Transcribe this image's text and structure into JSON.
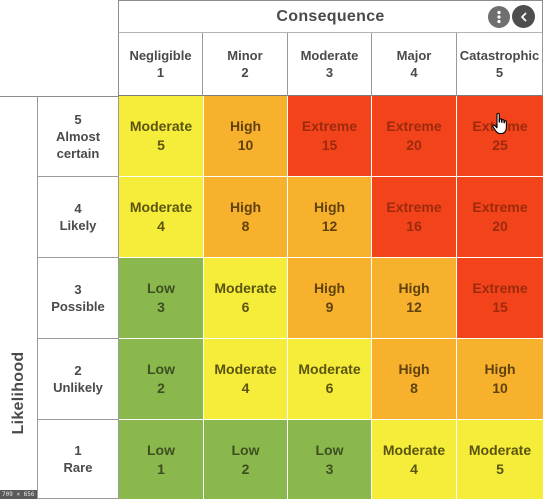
{
  "matrix": {
    "consequence_title": "Consequence",
    "likelihood_title": "Likelihood",
    "columns": [
      {
        "name": "Negligible",
        "value": "1"
      },
      {
        "name": "Minor",
        "value": "2"
      },
      {
        "name": "Moderate",
        "value": "3"
      },
      {
        "name": "Major",
        "value": "4"
      },
      {
        "name": "Catastrophic",
        "value": "5"
      }
    ],
    "rows": [
      {
        "value": "5",
        "name_line1": "Almost",
        "name_line2": "certain",
        "cells": [
          {
            "level": "Moderate",
            "score": "5"
          },
          {
            "level": "High",
            "score": "10"
          },
          {
            "level": "Extreme",
            "score": "15"
          },
          {
            "level": "Extreme",
            "score": "20"
          },
          {
            "level": "Extreme",
            "score": "25"
          }
        ]
      },
      {
        "value": "4",
        "name_line1": "Likely",
        "name_line2": "",
        "cells": [
          {
            "level": "Moderate",
            "score": "4"
          },
          {
            "level": "High",
            "score": "8"
          },
          {
            "level": "High",
            "score": "12"
          },
          {
            "level": "Extreme",
            "score": "16"
          },
          {
            "level": "Extreme",
            "score": "20"
          }
        ]
      },
      {
        "value": "3",
        "name_line1": "Possible",
        "name_line2": "",
        "cells": [
          {
            "level": "Low",
            "score": "3"
          },
          {
            "level": "Moderate",
            "score": "6"
          },
          {
            "level": "High",
            "score": "9"
          },
          {
            "level": "High",
            "score": "12"
          },
          {
            "level": "Extreme",
            "score": "15"
          }
        ]
      },
      {
        "value": "2",
        "name_line1": "Unlikely",
        "name_line2": "",
        "cells": [
          {
            "level": "Low",
            "score": "2"
          },
          {
            "level": "Moderate",
            "score": "4"
          },
          {
            "level": "Moderate",
            "score": "6"
          },
          {
            "level": "High",
            "score": "8"
          },
          {
            "level": "High",
            "score": "10"
          }
        ]
      },
      {
        "value": "1",
        "name_line1": "Rare",
        "name_line2": "",
        "cells": [
          {
            "level": "Low",
            "score": "1"
          },
          {
            "level": "Low",
            "score": "2"
          },
          {
            "level": "Low",
            "score": "3"
          },
          {
            "level": "Moderate",
            "score": "4"
          },
          {
            "level": "Moderate",
            "score": "5"
          }
        ]
      }
    ]
  },
  "level_colors": {
    "Low": "#8bb84c",
    "Moderate": "#f5ed3a",
    "High": "#f8b12c",
    "Extreme": "#f2431a"
  },
  "overlay": {
    "more_icon": "more-vertical-icon",
    "back_icon": "chevron-left-icon",
    "cursor_icon": "hand-pointer-icon",
    "size_badge": "709 × 656"
  }
}
